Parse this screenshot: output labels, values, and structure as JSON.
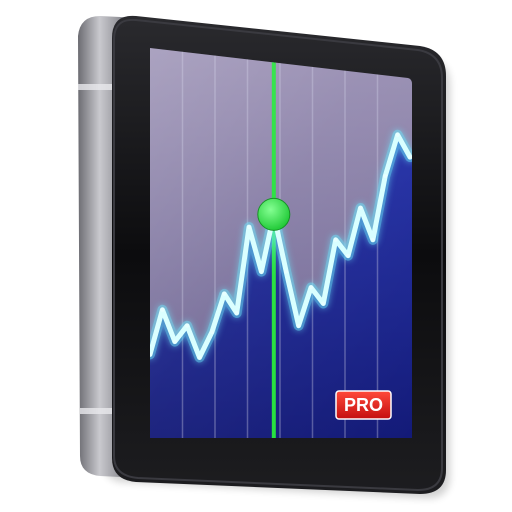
{
  "app_icon": {
    "name": "stock-chart-app-icon",
    "badge_text": "PRO",
    "colors": {
      "chart_fill": "#1a2490",
      "chart_sky": "#8a7fa8",
      "line": "#c8ffff",
      "glow": "#66e8ff",
      "cursor": "#22e03a",
      "badge": "#e01818",
      "bezel": "#0e0e10",
      "frame": "#9a9aa0"
    },
    "icon_glyphs": [
      "device-frame-icon",
      "line-chart-icon",
      "cursor-marker-icon",
      "pro-badge-icon"
    ]
  },
  "chart_data": {
    "type": "area",
    "x": [
      0,
      1,
      2,
      3,
      4,
      5,
      6,
      7,
      8,
      9,
      10,
      11,
      12,
      13,
      14,
      15,
      16,
      17,
      18,
      19,
      20,
      21
    ],
    "y": [
      20,
      34,
      24,
      29,
      19,
      27,
      39,
      33,
      60,
      46,
      64,
      46,
      29,
      41,
      36,
      56,
      51,
      66,
      56,
      76,
      89,
      82
    ],
    "ylim": [
      0,
      110
    ],
    "cursor_index": 10,
    "grid": true,
    "title": "",
    "xlabel": "",
    "ylabel": ""
  }
}
